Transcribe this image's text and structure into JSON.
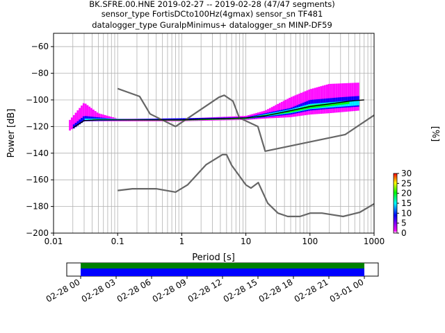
{
  "chart_data": {
    "type": "heatmap",
    "title_lines": [
      "BK.SFRE.00.HNE   2019-02-27 -- 2019-02-28  (47/47 segments)",
      "sensor_type FortisDCto100Hz(4gmax) sensor_sn TF481",
      "datalogger_type GuralpMinimus+ datalogger_sn MINP-DF59"
    ],
    "xlabel": "Period [s]",
    "ylabel": "Power [dB]",
    "x_scale": "log",
    "xlim": [
      0.01,
      1000
    ],
    "ylim": [
      -200,
      -50
    ],
    "grid": true,
    "x_ticks": [
      {
        "value": 0.01,
        "label": "0.01"
      },
      {
        "value": 0.1,
        "label": "0.1"
      },
      {
        "value": 1,
        "label": "1"
      },
      {
        "value": 10,
        "label": "10"
      },
      {
        "value": 100,
        "label": "100"
      },
      {
        "value": 1000,
        "label": "1000"
      }
    ],
    "y_ticks": [
      {
        "value": -60,
        "label": "−60"
      },
      {
        "value": -80,
        "label": "−80"
      },
      {
        "value": -100,
        "label": "−100"
      },
      {
        "value": -120,
        "label": "−120"
      },
      {
        "value": -140,
        "label": "−140"
      },
      {
        "value": -160,
        "label": "−160"
      },
      {
        "value": -180,
        "label": "−180"
      },
      {
        "value": -200,
        "label": "−200"
      }
    ],
    "colorbar": {
      "label": "[%]",
      "range": [
        0,
        30
      ],
      "ticks": [
        "0",
        "5",
        "10",
        "15",
        "20",
        "25",
        "30"
      ],
      "colors": [
        "#ffffff",
        "#ff00ff",
        "#0000ff",
        "#00ffff",
        "#00ff00",
        "#ffff00",
        "#ff0000"
      ]
    },
    "noise_model_high": [
      [
        0.1,
        -91.5
      ],
      [
        0.22,
        -97.4
      ],
      [
        0.32,
        -110.5
      ],
      [
        0.8,
        -120
      ],
      [
        3.8,
        -98
      ],
      [
        4.6,
        -96.5
      ],
      [
        6.3,
        -101
      ],
      [
        7.9,
        -113.5
      ],
      [
        15.4,
        -120
      ],
      [
        20,
        -138.5
      ],
      [
        354.8,
        -126
      ],
      [
        1000,
        -111.5
      ]
    ],
    "noise_model_low": [
      [
        0.1,
        -168
      ],
      [
        0.17,
        -166.7
      ],
      [
        0.4,
        -166.7
      ],
      [
        0.8,
        -169.2
      ],
      [
        1.24,
        -163.7
      ],
      [
        2.4,
        -148.6
      ],
      [
        4.3,
        -141.1
      ],
      [
        5,
        -141.1
      ],
      [
        6,
        -149
      ],
      [
        10,
        -163.8
      ],
      [
        12,
        -166.2
      ],
      [
        15.6,
        -162.1
      ],
      [
        21.9,
        -177.5
      ],
      [
        31.6,
        -185
      ],
      [
        45,
        -187.5
      ],
      [
        70,
        -187.5
      ],
      [
        101,
        -185
      ],
      [
        154,
        -185
      ],
      [
        328,
        -187.5
      ],
      [
        600,
        -184.4
      ],
      [
        1000,
        -178
      ]
    ],
    "median": [
      [
        0.02,
        -121
      ],
      [
        0.025,
        -118
      ],
      [
        0.03,
        -115.5
      ],
      [
        0.05,
        -115
      ],
      [
        0.1,
        -115
      ],
      [
        0.3,
        -115
      ],
      [
        1,
        -115
      ],
      [
        2,
        -114.5
      ],
      [
        5,
        -114
      ],
      [
        10,
        -113.5
      ],
      [
        20,
        -112
      ],
      [
        50,
        -108
      ],
      [
        100,
        -105
      ],
      [
        200,
        -103
      ],
      [
        400,
        -101
      ],
      [
        700,
        -100
      ]
    ],
    "spread_bands": [
      {
        "color": "#ff00ff",
        "points": [
          [
            0.018,
            -123,
            -115
          ],
          [
            0.03,
            -116,
            -102
          ],
          [
            0.05,
            -116,
            -110
          ],
          [
            0.1,
            -116,
            -114
          ],
          [
            1,
            -116,
            -114
          ],
          [
            10,
            -115,
            -112
          ],
          [
            20,
            -114,
            -108
          ],
          [
            50,
            -113,
            -98
          ],
          [
            100,
            -111,
            -92
          ],
          [
            200,
            -110,
            -88
          ],
          [
            600,
            -108,
            -87
          ]
        ]
      },
      {
        "color": "#0000ff",
        "points": [
          [
            0.02,
            -122,
            -119
          ],
          [
            0.03,
            -116,
            -112
          ],
          [
            0.1,
            -115.5,
            -114.5
          ],
          [
            10,
            -114.5,
            -113
          ],
          [
            50,
            -111,
            -106
          ],
          [
            100,
            -108,
            -100
          ],
          [
            300,
            -106,
            -98
          ],
          [
            600,
            -105,
            -97
          ]
        ]
      },
      {
        "color": "#00ffff",
        "points": [
          [
            0.03,
            -115.5,
            -114
          ],
          [
            1,
            -115.3,
            -114.7
          ],
          [
            10,
            -114.3,
            -113.5
          ],
          [
            50,
            -110,
            -107
          ],
          [
            100,
            -107,
            -103
          ],
          [
            600,
            -104,
            -100
          ]
        ]
      },
      {
        "color": "#00ff00",
        "points": [
          [
            0.04,
            -115.3,
            -114.5
          ],
          [
            1,
            -115.2,
            -114.8
          ],
          [
            10,
            -114.1,
            -113.6
          ],
          [
            50,
            -109.5,
            -108
          ],
          [
            100,
            -106.5,
            -104
          ],
          [
            400,
            -103,
            -101
          ]
        ]
      }
    ],
    "timeline": {
      "ticks": [
        "02-28 00",
        "02-28 03",
        "02-28 06",
        "02-28 09",
        "02-28 12",
        "02-28 15",
        "02-28 18",
        "02-28 21",
        "03-01 00"
      ],
      "bar_colors": [
        "#008000",
        "#0000ff"
      ]
    }
  }
}
